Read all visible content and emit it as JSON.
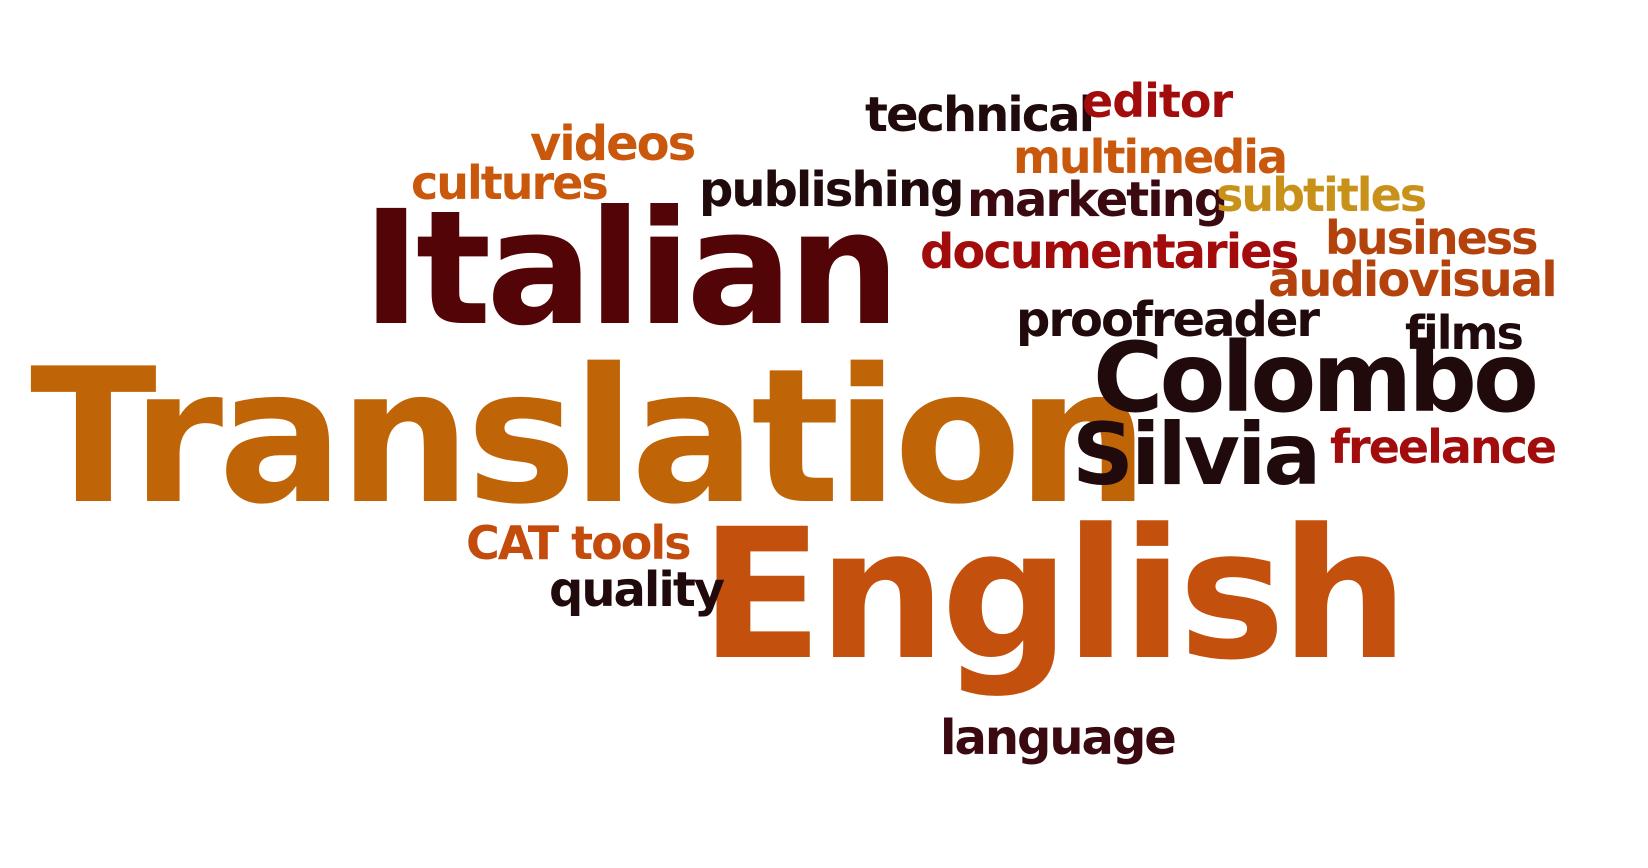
{
  "words": [
    {
      "id": "translation",
      "text": "Translation",
      "color": "#c06408"
    },
    {
      "id": "english",
      "text": "English",
      "color": "#c3500c"
    },
    {
      "id": "italian",
      "text": "Italian",
      "color": "#520407"
    },
    {
      "id": "colombo",
      "text": "Colombo",
      "color": "#200a0c"
    },
    {
      "id": "silvia",
      "text": "Silvia",
      "color": "#200a0c"
    },
    {
      "id": "technical",
      "text": "technical",
      "color": "#200a0c"
    },
    {
      "id": "editor",
      "text": "editor",
      "color": "#a30c0c"
    },
    {
      "id": "videos",
      "text": "videos",
      "color": "#c9580d"
    },
    {
      "id": "multimedia",
      "text": "multimedia",
      "color": "#c9580d"
    },
    {
      "id": "cultures",
      "text": "cultures",
      "color": "#c9580d"
    },
    {
      "id": "publishing",
      "text": "publishing",
      "color": "#200a0c"
    },
    {
      "id": "marketing",
      "text": "marketing",
      "color": "#3a0a10"
    },
    {
      "id": "subtitles",
      "text": "subtitles",
      "color": "#c8921a"
    },
    {
      "id": "business",
      "text": "business",
      "color": "#b4420c"
    },
    {
      "id": "documentaries",
      "text": "documentaries",
      "color": "#a30c0c"
    },
    {
      "id": "audiovisual",
      "text": "audiovisual",
      "color": "#b4420c"
    },
    {
      "id": "proofreader",
      "text": "proofreader",
      "color": "#200a0c"
    },
    {
      "id": "films",
      "text": "films",
      "color": "#200a0c"
    },
    {
      "id": "freelance",
      "text": "freelance",
      "color": "#a30c0c"
    },
    {
      "id": "cat-tools",
      "text": "CAT tools",
      "color": "#c34c0c"
    },
    {
      "id": "quality",
      "text": "quality",
      "color": "#200a0c"
    },
    {
      "id": "language",
      "text": "language",
      "color": "#3a0a10"
    }
  ]
}
